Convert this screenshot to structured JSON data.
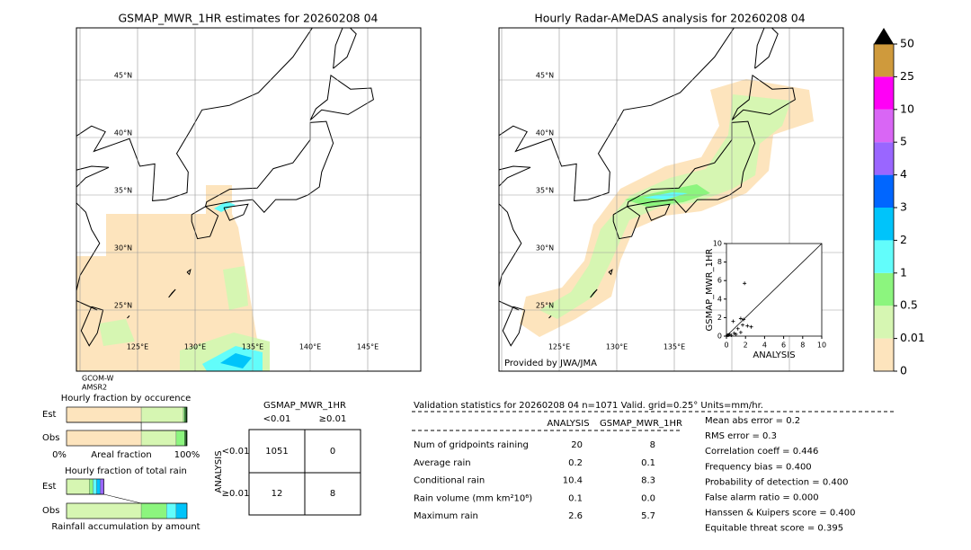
{
  "maps": [
    {
      "title": "GSMAP_MWR_1HR estimates for 20260208 04",
      "lat_labels": [
        "45°N",
        "40°N",
        "35°N",
        "30°N",
        "25°N"
      ],
      "lon_labels": [
        "125°E",
        "130°E",
        "135°E",
        "140°E",
        "145°E"
      ]
    },
    {
      "title": "Hourly Radar-AMeDAS analysis for 20260208 04",
      "lat_labels": [
        "45°N",
        "40°N",
        "35°N",
        "30°N",
        "25°N"
      ],
      "lon_labels": [
        "125°E",
        "130°E",
        "135°E"
      ],
      "credit": "Provided by JWA/JMA"
    }
  ],
  "satellite": [
    "GCOM-W",
    "AMSR2"
  ],
  "colorbar": {
    "ticks": [
      0,
      0.01,
      0.5,
      1,
      2,
      3,
      4,
      5,
      10,
      25,
      50
    ],
    "colors": [
      "#fde4bd",
      "#d6f6b2",
      "#8cf57e",
      "#62fdfb",
      "#00c4fa",
      "#0066ff",
      "#9a66ff",
      "#d966f5",
      "#ff00f6",
      "#cf9a3c"
    ],
    "extend_color": "#000000"
  },
  "scatter": {
    "xlabel": "ANALYSIS",
    "ylabel": "GSMAP_MWR_1HR",
    "xlim": [
      0,
      10
    ],
    "ylim": [
      0,
      10
    ],
    "xticks": [
      0,
      2,
      4,
      6,
      8,
      10
    ],
    "yticks": [
      0,
      2,
      4,
      6,
      8,
      10
    ],
    "x": [
      0.1,
      0.2,
      0.3,
      0.5,
      0.8,
      1.0,
      1.2,
      1.5,
      1.7,
      1.8,
      2.2,
      2.6,
      1.9,
      0.7,
      1.5
    ],
    "y": [
      0.1,
      0.1,
      0.2,
      0.1,
      0.3,
      0.2,
      0.8,
      0.4,
      1.2,
      1.8,
      1.1,
      1.0,
      5.7,
      1.6,
      1.9
    ]
  },
  "occurrence": {
    "title": "Hourly fraction by occurence",
    "rows": [
      "Est",
      "Obs"
    ],
    "xlabel": "Areal fraction",
    "xtick_labels": [
      "0%",
      "100%"
    ],
    "fractions": [
      [
        0.62,
        0.35,
        0.01,
        0.01,
        0.01
      ],
      [
        0.62,
        0.29,
        0.07,
        0.01,
        0.01
      ]
    ],
    "colors": [
      "#fde4bd",
      "#d6f6b2",
      "#8cf57e",
      "#2e8b2e",
      "#003300"
    ]
  },
  "total_rain": {
    "title": "Hourly fraction of total rain",
    "rows": [
      "Est",
      "Obs"
    ],
    "xlabel": "Rainfall accumulation by amount",
    "fractions": [
      [
        0.19,
        0.03,
        0.03,
        0.03,
        0.03
      ],
      [
        0.62,
        0.21,
        0.08,
        0.09,
        0
      ]
    ],
    "colors": [
      "#d6f6b2",
      "#8cf57e",
      "#62fdfb",
      "#00c4fa",
      "#9a66ff"
    ]
  },
  "contingency": {
    "title": "GSMAP_MWR_1HR",
    "columns": [
      "<0.01",
      "≥0.01"
    ],
    "row_title": "ANALYSIS",
    "rows": [
      "<0.01",
      "≥0.01"
    ],
    "cells": [
      [
        1051,
        0
      ],
      [
        12,
        8
      ]
    ]
  },
  "validation": {
    "title": "Validation statistics for 20260208 04  n=1071 Valid. grid=0.25° Units=mm/hr.",
    "columns": [
      "ANALYSIS",
      "GSMAP_MWR_1HR"
    ],
    "rows": [
      {
        "label": "Num of gridpoints raining",
        "values": [
          "20",
          "8"
        ]
      },
      {
        "label": "Average rain",
        "values": [
          "0.2",
          "0.1"
        ]
      },
      {
        "label": "Conditional rain",
        "values": [
          "10.4",
          "8.3"
        ]
      },
      {
        "label": "Rain volume (mm km²10⁶)",
        "values": [
          "0.1",
          "0.0"
        ]
      },
      {
        "label": "Maximum rain",
        "values": [
          "2.6",
          "5.7"
        ]
      }
    ],
    "scores": [
      "Mean abs error =    0.2",
      "RMS error =    0.3",
      "Correlation coeff =  0.446",
      "Frequency bias =  0.400",
      "Probability of detection =  0.400",
      "False alarm ratio =  0.000",
      "Hanssen & Kuipers score =  0.400",
      "Equitable threat score =  0.395"
    ]
  }
}
